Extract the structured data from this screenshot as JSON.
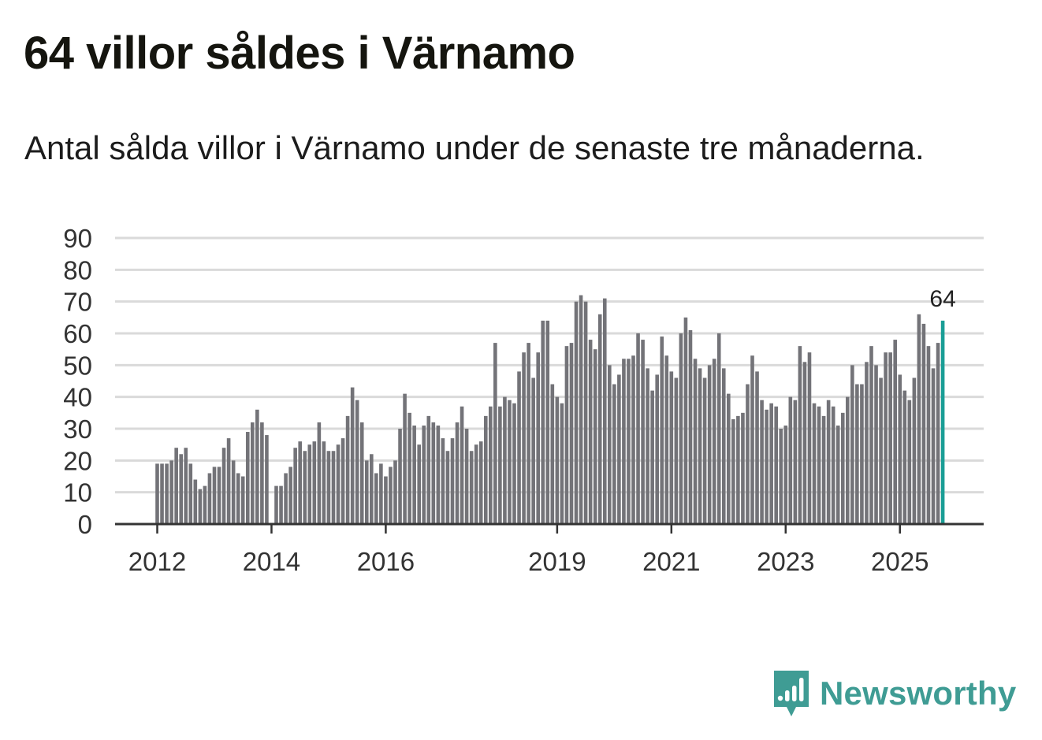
{
  "header": {
    "title": "64 villor såldes i Värnamo",
    "subtitle": "Antal sålda villor i Värnamo under de senaste tre månaderna."
  },
  "brand": {
    "name": "Newsworthy",
    "icon": "newsworthy-chart-bubble-icon",
    "color": "#3f9c94"
  },
  "colors": {
    "bar": "#737378",
    "highlight": "#1a9e96",
    "grid": "#dadada",
    "axis": "#333333"
  },
  "chart_data": {
    "type": "bar",
    "title": "64 villor såldes i Värnamo",
    "subtitle": "Antal sålda villor i Värnamo under de senaste tre månaderna.",
    "xlabel": "",
    "ylabel": "",
    "ylim": [
      0,
      90
    ],
    "yticks": [
      0,
      10,
      20,
      30,
      40,
      50,
      60,
      70,
      80,
      90
    ],
    "grid": true,
    "start": "2012-01",
    "frequency": "monthly",
    "xtick_labels": [
      {
        "label": "2012",
        "index": 0
      },
      {
        "label": "2014",
        "index": 24
      },
      {
        "label": "2016",
        "index": 48
      },
      {
        "label": "2019",
        "index": 84
      },
      {
        "label": "2021",
        "index": 108
      },
      {
        "label": "2023",
        "index": 132
      },
      {
        "label": "2025",
        "index": 156
      }
    ],
    "highlight_label": "64",
    "values": [
      19,
      19,
      19,
      20,
      24,
      22,
      24,
      19,
      14,
      11,
      12,
      16,
      18,
      18,
      24,
      27,
      20,
      16,
      15,
      29,
      32,
      36,
      32,
      28,
      0,
      12,
      12,
      16,
      18,
      24,
      26,
      23,
      25,
      26,
      32,
      26,
      23,
      23,
      25,
      27,
      34,
      43,
      39,
      32,
      20,
      22,
      16,
      19,
      15,
      18,
      20,
      30,
      41,
      35,
      31,
      25,
      31,
      34,
      32,
      31,
      27,
      23,
      27,
      32,
      37,
      30,
      23,
      25,
      26,
      34,
      37,
      57,
      37,
      40,
      39,
      38,
      48,
      54,
      57,
      46,
      54,
      64,
      64,
      44,
      40,
      38,
      56,
      57,
      70,
      72,
      70,
      58,
      55,
      66,
      71,
      50,
      44,
      47,
      52,
      52,
      53,
      60,
      58,
      49,
      42,
      47,
      59,
      53,
      48,
      46,
      60,
      65,
      61,
      52,
      49,
      46,
      50,
      52,
      60,
      49,
      41,
      33,
      34,
      35,
      44,
      53,
      48,
      39,
      36,
      38,
      37,
      30,
      31,
      40,
      39,
      56,
      51,
      54,
      38,
      37,
      34,
      39,
      37,
      31,
      35,
      40,
      50,
      44,
      44,
      51,
      56,
      50,
      46,
      54,
      54,
      58,
      47,
      42,
      39,
      46,
      66,
      63,
      56,
      49,
      57,
      64
    ]
  }
}
